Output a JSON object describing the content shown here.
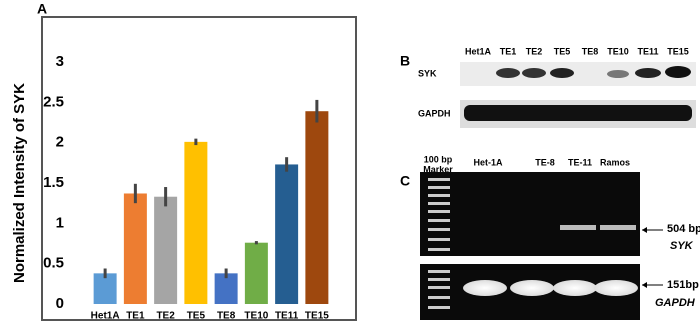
{
  "chart_data": {
    "type": "bar",
    "panel": "A",
    "ylabel": "Normalized Intensity of SYK",
    "categories": [
      "Het1A",
      "TE1",
      "TE2",
      "TE5",
      "TE8",
      "TE10",
      "TE11",
      "TE15"
    ],
    "values": [
      0.38,
      1.37,
      1.33,
      2.01,
      0.38,
      0.76,
      1.73,
      2.39
    ],
    "errors": [
      0.06,
      0.12,
      0.12,
      0.04,
      0.06,
      0.02,
      0.09,
      0.14
    ],
    "colors": [
      "#5b9bd5",
      "#ed7d31",
      "#a5a5a5",
      "#ffc000",
      "#4472c4",
      "#70ad47",
      "#255e91",
      "#9e480e"
    ],
    "ylim": [
      0,
      3
    ],
    "yticks": [
      0,
      0.5,
      1,
      1.5,
      2,
      2.5,
      3
    ],
    "grid": false
  },
  "panel_b": {
    "label": "B",
    "lanes": [
      "Het1A",
      "TE1",
      "TE2",
      "TE5",
      "TE8",
      "TE10",
      "TE11",
      "TE15"
    ],
    "rows": [
      "SYK",
      "GAPDH"
    ]
  },
  "panel_c": {
    "label": "C",
    "marker": [
      "100 bp",
      "Marker"
    ],
    "lanes": [
      "Het-1A",
      "TE-8",
      "TE-11",
      "Ramos"
    ],
    "band_1": "504 bp",
    "gene_1": "SYK",
    "band_2": "151bp",
    "gene_2": "GAPDH"
  }
}
